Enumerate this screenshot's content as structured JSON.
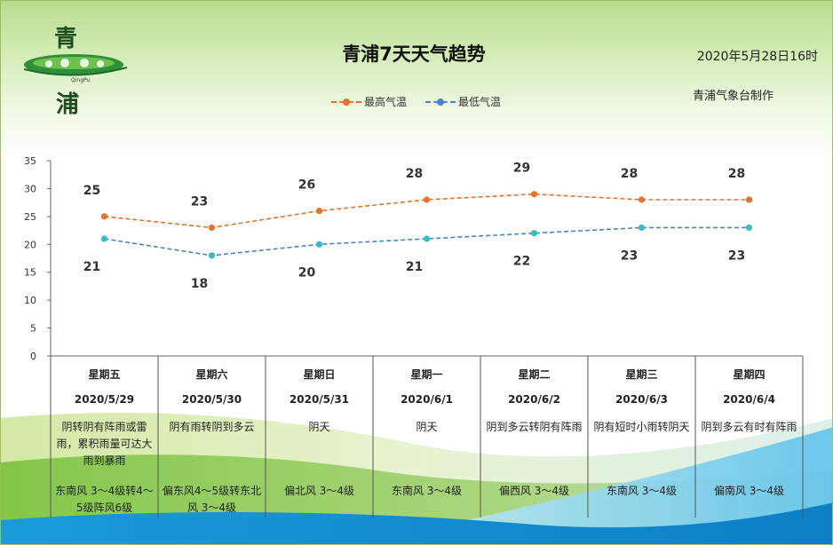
{
  "logo": {
    "char_top": "青",
    "char_bottom": "浦",
    "subtitle": "QingPu"
  },
  "header": {
    "title": "青浦7天天气趋势",
    "issued": "2020年5月28日16时",
    "producer": "青浦气象台制作"
  },
  "chart_data": {
    "type": "line",
    "title": "青浦7天天气趋势",
    "categories": [
      "星期五",
      "星期六",
      "星期日",
      "星期一",
      "星期二",
      "星期三",
      "星期四"
    ],
    "series": [
      {
        "name": "最高气温",
        "values": [
          25,
          23,
          26,
          28,
          29,
          28,
          28
        ],
        "color": "#e8722a"
      },
      {
        "name": "最低气温",
        "values": [
          21,
          18,
          20,
          21,
          22,
          23,
          23
        ],
        "color": "#4a86c5"
      }
    ],
    "ylim": [
      0,
      35
    ],
    "yticks": [
      0,
      5,
      10,
      15,
      20,
      25,
      30,
      35
    ],
    "xlabel": "",
    "ylabel": "",
    "legend": "top",
    "grid": false,
    "line_style": "dashed"
  },
  "days": [
    {
      "weekday": "星期五",
      "date": "2020/5/29",
      "weather": "阴转阴有阵雨或雷雨，累积雨量可达大雨到暴雨",
      "wind": "东南风 3～4级转4～5级阵风6级"
    },
    {
      "weekday": "星期六",
      "date": "2020/5/30",
      "weather": "阴有雨转阴到多云",
      "wind": "偏东风4～5级转东北风 3～4级"
    },
    {
      "weekday": "星期日",
      "date": "2020/5/31",
      "weather": "阴天",
      "wind": "偏北风 3～4级"
    },
    {
      "weekday": "星期一",
      "date": "2020/6/1",
      "weather": "阴天",
      "wind": "东南风 3～4级"
    },
    {
      "weekday": "星期二",
      "date": "2020/6/2",
      "weather": "阴到多云转阴有阵雨",
      "wind": "偏西风 3～4级"
    },
    {
      "weekday": "星期三",
      "date": "2020/6/3",
      "weather": "阴有短时小雨转阴天",
      "wind": "东南风 3～4级"
    },
    {
      "weekday": "星期四",
      "date": "2020/6/4",
      "weather": "阴到多云有时有阵雨",
      "wind": "偏南风 3～4级"
    }
  ],
  "colors": {
    "high": "#e8722a",
    "low": "#4a86c5",
    "low_marker": "#35bcc5",
    "axis": "#666666"
  }
}
